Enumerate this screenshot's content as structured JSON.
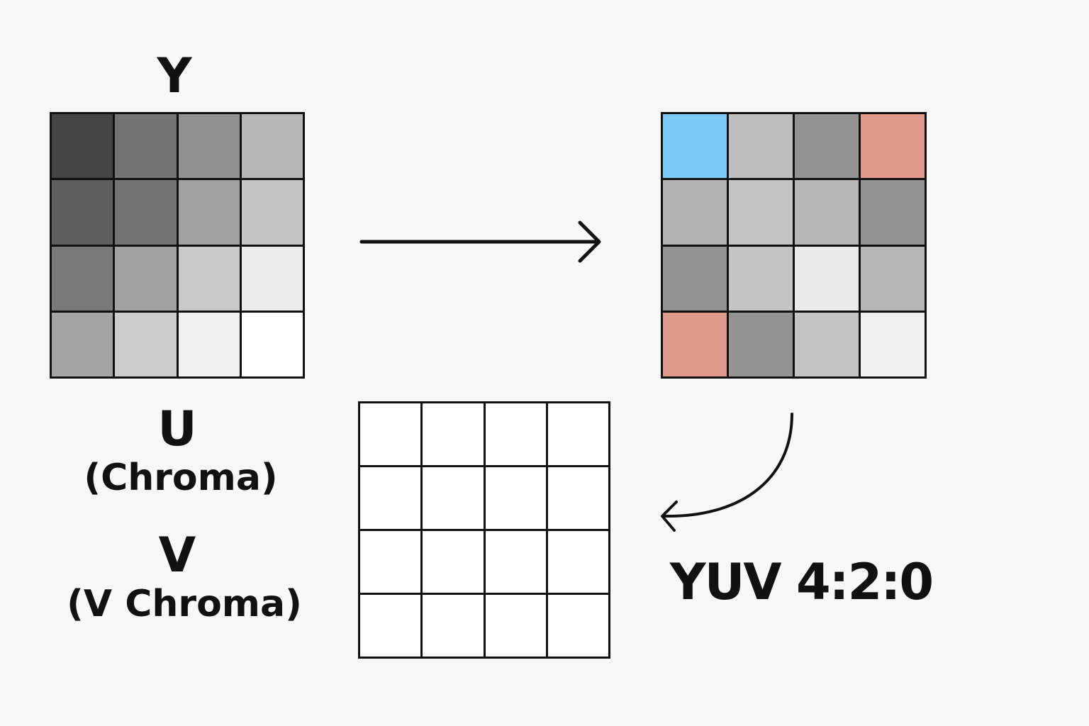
{
  "labels": {
    "y": "Y",
    "u": "U",
    "u_sub": "(Chroma)",
    "v": "V",
    "v_sub": "(V Chroma)",
    "format": "YUV 4:2:0"
  },
  "colors": {
    "background": "#f8f8f8",
    "stroke": "#111111",
    "chroma_blue": "#7cc8f7",
    "chroma_red": "#e09b8d"
  },
  "y_grid": [
    [
      "#444444",
      "#737373",
      "#919191",
      "#b6b7b7"
    ],
    [
      "#5f5f5f",
      "#747474",
      "#a0a0a1",
      "#c3c4c4"
    ],
    [
      "#7a7a7a",
      "#a1a1a2",
      "#c9c9c9",
      "#ececec"
    ],
    [
      "#a4a4a5",
      "#cacbcb",
      "#f0f0f0",
      "#ffffff"
    ]
  ],
  "output_grid": [
    [
      "#7cc8f7",
      "#bdbebe",
      "#939393",
      "#e09b8d"
    ],
    [
      "#b3b3b3",
      "#c2c3c3",
      "#b6b6b6",
      "#939393"
    ],
    [
      "#939393",
      "#c4c4c4",
      "#eaeaea",
      "#b6b6b6"
    ],
    [
      "#e09b8d",
      "#939393",
      "#c3c3c3",
      "#efefef"
    ]
  ],
  "empty_grid": [
    [
      "#ffffff",
      "#ffffff",
      "#ffffff",
      "#ffffff"
    ],
    [
      "#ffffff",
      "#ffffff",
      "#ffffff",
      "#ffffff"
    ],
    [
      "#ffffff",
      "#ffffff",
      "#ffffff",
      "#ffffff"
    ],
    [
      "#ffffff",
      "#ffffff",
      "#ffffff",
      "#ffffff"
    ]
  ]
}
